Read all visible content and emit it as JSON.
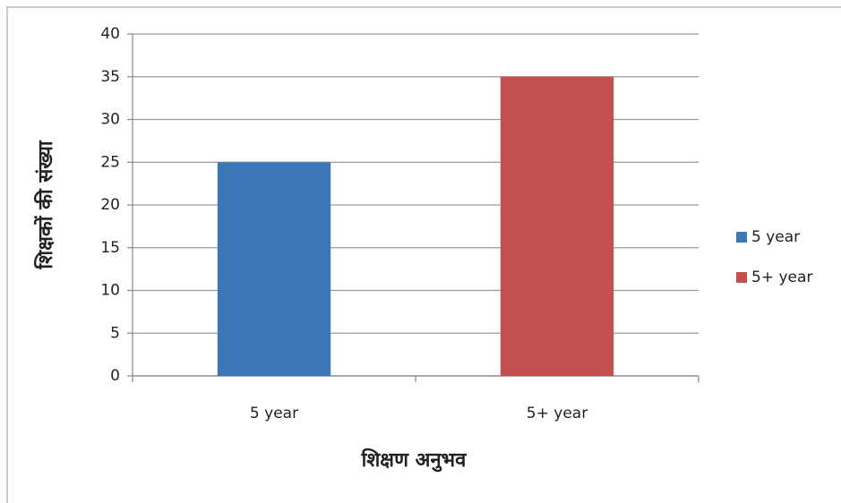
{
  "chart_data": {
    "type": "bar",
    "x_label": "शिक्षण अनुभव",
    "y_label": "शिक्षकों की संख्या",
    "categories": [
      "5 year",
      "5+ year"
    ],
    "values": [
      25,
      35
    ],
    "colors": [
      "#3b76b6",
      "#c3504e"
    ],
    "ylim": [
      0,
      40
    ],
    "yticks": [
      0,
      5,
      10,
      15,
      20,
      25,
      30,
      35,
      40
    ],
    "grid": true,
    "legend": "right"
  }
}
